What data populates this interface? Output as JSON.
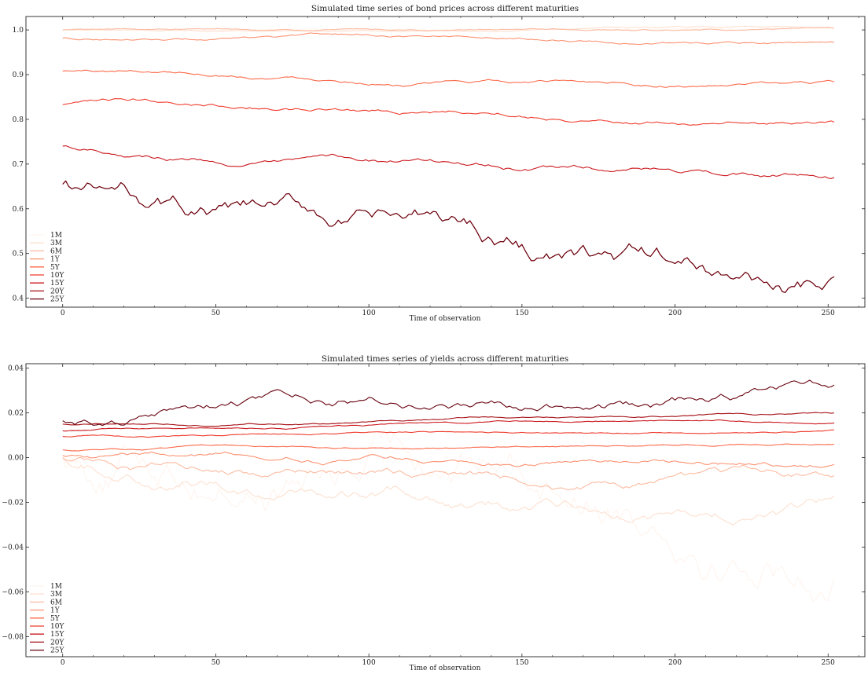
{
  "chart_data": [
    {
      "type": "line",
      "title": "Simulated time series of bond prices across different maturities",
      "xlabel": "Time of observation",
      "ylabel": "",
      "xlim": [
        -12,
        262
      ],
      "ylim": [
        0.38,
        1.03
      ],
      "xticks": [
        "0",
        "50",
        "100",
        "150",
        "200",
        "250"
      ],
      "xtick_values": [
        0,
        50,
        100,
        150,
        200,
        250
      ],
      "yticks": [
        "0.4",
        "0.5",
        "0.6",
        "0.7",
        "0.8",
        "0.9",
        "1.0"
      ],
      "ytick_values": [
        0.4,
        0.5,
        0.6,
        0.7,
        0.8,
        0.9,
        1.0
      ],
      "legend_position": "bottom-left",
      "n_points": 253,
      "series": [
        {
          "name": "1M",
          "color": "#fff4ee",
          "start": 1.0,
          "end": 1.004,
          "vol": 0.0005
        },
        {
          "name": "3M",
          "color": "#fde0d0",
          "start": 1.0,
          "end": 1.004,
          "vol": 0.0008
        },
        {
          "name": "6M",
          "color": "#fcbba1",
          "start": 1.0,
          "end": 1.004,
          "vol": 0.001
        },
        {
          "name": "1Y",
          "color": "#fc9272",
          "start": 0.982,
          "end": 0.972,
          "vol": 0.0015
        },
        {
          "name": "5Y",
          "color": "#fb6a4a",
          "start": 0.908,
          "end": 0.884,
          "vol": 0.002
        },
        {
          "name": "10Y",
          "color": "#ef3b2c",
          "start": 0.833,
          "end": 0.794,
          "vol": 0.0025
        },
        {
          "name": "15Y",
          "color": "#cb181d",
          "start": 0.74,
          "end": 0.67,
          "vol": 0.003
        },
        {
          "name": "20Y",
          "color": "#a50f15",
          "start": 0.655,
          "end": 0.448,
          "vol": 0.012
        },
        {
          "name": "25Y",
          "color": "#67000d",
          "start": 0.655,
          "end": 0.448,
          "vol": 0.012
        }
      ]
    },
    {
      "type": "line",
      "title": "Simulated times series of yields across different maturities",
      "xlabel": "Time of observation",
      "ylabel": "",
      "xlim": [
        -12,
        262
      ],
      "ylim": [
        -0.089,
        0.042
      ],
      "xticks": [
        "0",
        "50",
        "100",
        "150",
        "200",
        "250"
      ],
      "xtick_values": [
        0,
        50,
        100,
        150,
        200,
        250
      ],
      "yticks": [
        "−0.08",
        "−0.06",
        "−0.04",
        "−0.02",
        "0.00",
        "0.02",
        "0.04"
      ],
      "ytick_values": [
        -0.08,
        -0.06,
        -0.04,
        -0.02,
        0.0,
        0.02,
        0.04
      ],
      "legend_position": "bottom-left",
      "n_points": 253,
      "series": [
        {
          "name": "1M",
          "color": "#fff4ee",
          "start": 0.0,
          "end": -0.054,
          "vol": 0.005
        },
        {
          "name": "3M",
          "color": "#fde0d0",
          "start": 0.0,
          "end": -0.017,
          "vol": 0.0015
        },
        {
          "name": "6M",
          "color": "#fcbba1",
          "start": 0.0,
          "end": -0.008,
          "vol": 0.001
        },
        {
          "name": "1Y",
          "color": "#fc9272",
          "start": 0.001,
          "end": -0.003,
          "vol": 0.0006
        },
        {
          "name": "5Y",
          "color": "#fb6a4a",
          "start": 0.0035,
          "end": 0.006,
          "vol": 0.0002
        },
        {
          "name": "10Y",
          "color": "#ef3b2c",
          "start": 0.0095,
          "end": 0.0125,
          "vol": 0.0002
        },
        {
          "name": "15Y",
          "color": "#cb181d",
          "start": 0.012,
          "end": 0.0155,
          "vol": 0.0002
        },
        {
          "name": "20Y",
          "color": "#a50f15",
          "start": 0.015,
          "end": 0.02,
          "vol": 0.0002
        },
        {
          "name": "25Y",
          "color": "#67000d",
          "start": 0.0165,
          "end": 0.0325,
          "vol": 0.0012
        }
      ]
    }
  ]
}
